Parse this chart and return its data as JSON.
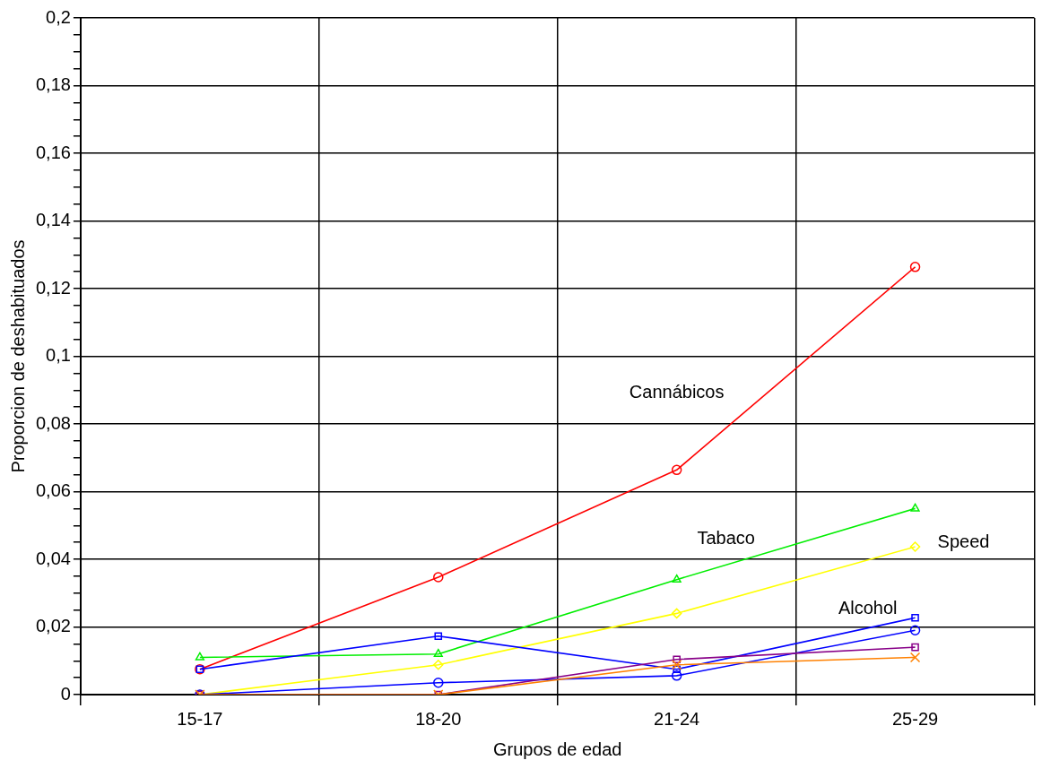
{
  "chart_data": {
    "type": "line",
    "xlabel": "Grupos de edad",
    "ylabel": "Proporcion de deshabituados",
    "categories": [
      "15-17",
      "18-20",
      "21-24",
      "25-29"
    ],
    "series": [
      {
        "name": "Cannábicos",
        "color": "#ff0000",
        "marker": "circle",
        "values": [
          0.0075,
          0.0347,
          0.0664,
          0.1264
        ]
      },
      {
        "name": "Tabaco",
        "color": "#00ee00",
        "marker": "triangle",
        "values": [
          0.011,
          0.012,
          0.034,
          0.055
        ]
      },
      {
        "name": "Speed",
        "color": "#ffff00",
        "marker": "diamond",
        "values": [
          0,
          0.0088,
          0.024,
          0.0437
        ]
      },
      {
        "name": "Alcohol",
        "color": "#0000ff",
        "marker": "square",
        "values": [
          0.0075,
          0.0173,
          0.0075,
          0.0227
        ]
      },
      {
        "color": "#0000ff",
        "marker": "circle",
        "values": [
          0,
          0.0035,
          0.0056,
          0.019
        ]
      },
      {
        "color": "#880088",
        "marker": "square",
        "values": [
          0,
          0,
          0.0104,
          0.014
        ]
      },
      {
        "color": "#ff8000",
        "marker": "cross",
        "values": [
          0,
          0,
          0.0088,
          0.011
        ]
      }
    ],
    "ylim": [
      0,
      0.2
    ],
    "yticks": [
      {
        "value": 0,
        "label": "0"
      },
      {
        "value": 0.005,
        "label": null
      },
      {
        "value": 0.01,
        "label": null
      },
      {
        "value": 0.015,
        "label": null
      },
      {
        "value": 0.02,
        "label": "0,02"
      },
      {
        "value": 0.025,
        "label": null
      },
      {
        "value": 0.03,
        "label": null
      },
      {
        "value": 0.035,
        "label": null
      },
      {
        "value": 0.04,
        "label": "0,04"
      },
      {
        "value": 0.045,
        "label": null
      },
      {
        "value": 0.05,
        "label": null
      },
      {
        "value": 0.055,
        "label": null
      },
      {
        "value": 0.06,
        "label": "0,06"
      },
      {
        "value": 0.065,
        "label": null
      },
      {
        "value": 0.07,
        "label": null
      },
      {
        "value": 0.075,
        "label": null
      },
      {
        "value": 0.08,
        "label": "0,08"
      },
      {
        "value": 0.085,
        "label": null
      },
      {
        "value": 0.09,
        "label": null
      },
      {
        "value": 0.095,
        "label": null
      },
      {
        "value": 0.1,
        "label": "0,1"
      },
      {
        "value": 0.105,
        "label": null
      },
      {
        "value": 0.11,
        "label": null
      },
      {
        "value": 0.115,
        "label": null
      },
      {
        "value": 0.12,
        "label": "0,12"
      },
      {
        "value": 0.125,
        "label": null
      },
      {
        "value": 0.13,
        "label": null
      },
      {
        "value": 0.135,
        "label": null
      },
      {
        "value": 0.14,
        "label": "0,14"
      },
      {
        "value": 0.145,
        "label": null
      },
      {
        "value": 0.15,
        "label": null
      },
      {
        "value": 0.155,
        "label": null
      },
      {
        "value": 0.16,
        "label": "0,16"
      },
      {
        "value": 0.165,
        "label": null
      },
      {
        "value": 0.17,
        "label": null
      },
      {
        "value": 0.175,
        "label": null
      },
      {
        "value": 0.18,
        "label": "0,18"
      },
      {
        "value": 0.185,
        "label": null
      },
      {
        "value": 0.19,
        "label": null
      },
      {
        "value": 0.195,
        "label": null
      },
      {
        "value": 0.2,
        "label": "0,2"
      }
    ],
    "grid": true,
    "legend": false,
    "line_style": "solid"
  }
}
